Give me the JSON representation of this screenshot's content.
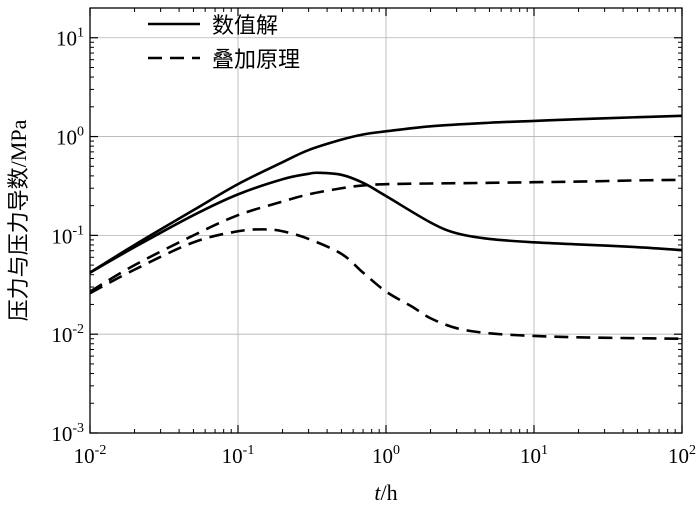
{
  "chart_data": {
    "type": "line",
    "xscale": "log",
    "yscale": "log",
    "xlim": [
      0.01,
      100
    ],
    "ylim": [
      0.001,
      20
    ],
    "grid": true,
    "legend_placement": "top-left",
    "xlabel": {
      "italic": "t",
      "rest": "/h"
    },
    "ylabel": "压力与压力导数/MPa",
    "x_ticks": [
      {
        "value": 0.01,
        "base": "10",
        "exp": "-2"
      },
      {
        "value": 0.1,
        "base": "10",
        "exp": "-1"
      },
      {
        "value": 1,
        "base": "10",
        "exp": "0"
      },
      {
        "value": 10,
        "base": "10",
        "exp": "1"
      },
      {
        "value": 100,
        "base": "10",
        "exp": "2"
      }
    ],
    "y_ticks": [
      {
        "value": 0.001,
        "base": "10",
        "exp": "-3"
      },
      {
        "value": 0.01,
        "base": "10",
        "exp": "-2"
      },
      {
        "value": 0.1,
        "base": "10",
        "exp": "-1"
      },
      {
        "value": 1,
        "base": "10",
        "exp": "0"
      },
      {
        "value": 10,
        "base": "10",
        "exp": "1"
      }
    ],
    "legend": [
      {
        "label": "数值解",
        "style": "solid"
      },
      {
        "label": "叠加原理",
        "style": "dashed"
      }
    ],
    "series": [
      {
        "name": "数值解",
        "kind": "pressure",
        "style": "solid",
        "x": [
          0.01,
          0.02,
          0.05,
          0.1,
          0.2,
          0.3,
          0.5,
          0.7,
          1,
          2,
          5,
          10,
          20,
          50,
          100
        ],
        "y": [
          0.042,
          0.08,
          0.18,
          0.33,
          0.55,
          0.73,
          0.93,
          1.05,
          1.13,
          1.27,
          1.38,
          1.44,
          1.5,
          1.57,
          1.62
        ]
      },
      {
        "name": "数值解",
        "kind": "derivative",
        "style": "solid",
        "x": [
          0.01,
          0.02,
          0.05,
          0.1,
          0.2,
          0.3,
          0.35,
          0.5,
          0.7,
          1,
          2,
          3,
          5,
          10,
          20,
          50,
          100
        ],
        "y": [
          0.042,
          0.076,
          0.16,
          0.26,
          0.37,
          0.42,
          0.43,
          0.41,
          0.34,
          0.25,
          0.135,
          0.105,
          0.092,
          0.085,
          0.081,
          0.076,
          0.071
        ]
      },
      {
        "name": "叠加原理",
        "kind": "pressure",
        "style": "dashed",
        "x": [
          0.01,
          0.02,
          0.05,
          0.1,
          0.2,
          0.3,
          0.5,
          0.7,
          1,
          2,
          5,
          10,
          20,
          50,
          100
        ],
        "y": [
          0.027,
          0.05,
          0.1,
          0.16,
          0.22,
          0.26,
          0.3,
          0.32,
          0.33,
          0.335,
          0.34,
          0.345,
          0.35,
          0.36,
          0.365
        ]
      },
      {
        "name": "叠加原理",
        "kind": "derivative",
        "style": "dashed",
        "x": [
          0.01,
          0.02,
          0.05,
          0.1,
          0.15,
          0.2,
          0.3,
          0.5,
          0.7,
          1,
          1.5,
          2,
          3,
          5,
          10,
          20,
          50,
          100
        ],
        "y": [
          0.026,
          0.045,
          0.085,
          0.11,
          0.115,
          0.11,
          0.092,
          0.065,
          0.042,
          0.027,
          0.019,
          0.0145,
          0.0115,
          0.0102,
          0.0096,
          0.0093,
          0.0091,
          0.009
        ]
      }
    ]
  }
}
